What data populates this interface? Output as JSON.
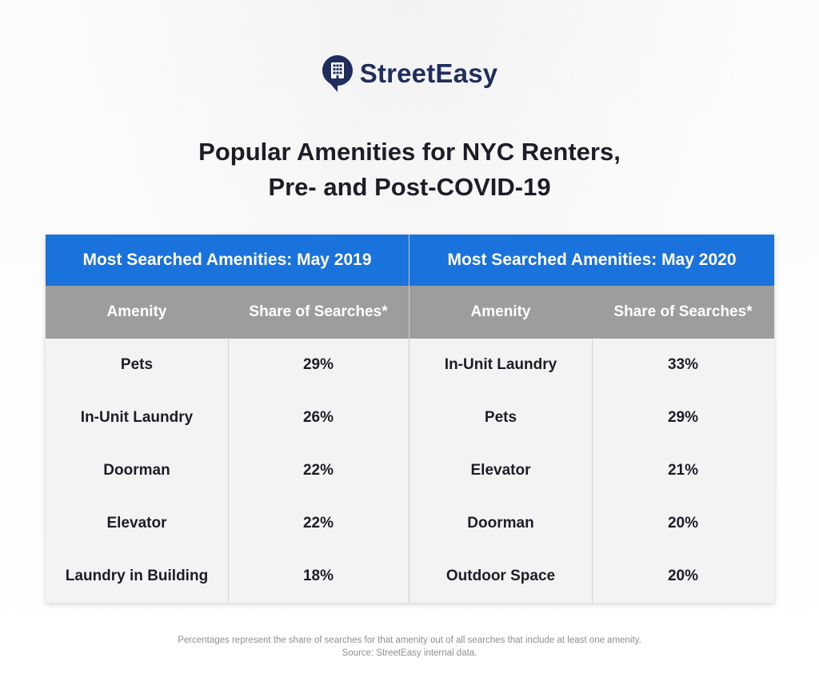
{
  "brand": {
    "name": "StreetEasy",
    "icon": "building-pin-icon",
    "color": "#1f2e5c"
  },
  "title": {
    "line1": "Popular Amenities for NYC Renters,",
    "line2": "Pre- and Post-COVID-19"
  },
  "colors": {
    "header_blue": "#1a72dc",
    "subheader_gray": "#9d9d9d"
  },
  "tables": [
    {
      "heading": "Most Searched Amenities: May 2019",
      "columns": [
        "Amenity",
        "Share of Searches*"
      ],
      "rows": [
        [
          "Pets",
          "29%"
        ],
        [
          "In-Unit Laundry",
          "26%"
        ],
        [
          "Doorman",
          "22%"
        ],
        [
          "Elevator",
          "22%"
        ],
        [
          "Laundry in Building",
          "18%"
        ]
      ]
    },
    {
      "heading": "Most Searched Amenities: May 2020",
      "columns": [
        "Amenity",
        "Share of Searches*"
      ],
      "rows": [
        [
          "In-Unit Laundry",
          "33%"
        ],
        [
          "Pets",
          "29%"
        ],
        [
          "Elevator",
          "21%"
        ],
        [
          "Doorman",
          "20%"
        ],
        [
          "Outdoor Space",
          "20%"
        ]
      ]
    }
  ],
  "footnote": {
    "line1": "Percentages represent the share of searches for that amenity out of all searches that include at least one amenity.",
    "line2": "Source: StreetEasy internal data."
  }
}
